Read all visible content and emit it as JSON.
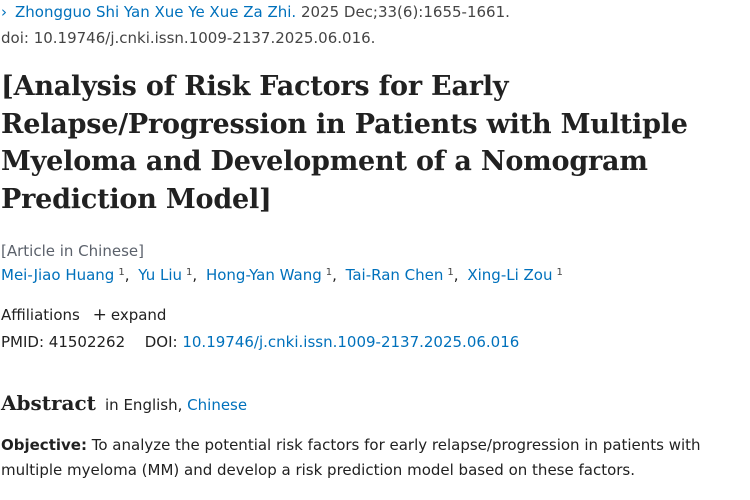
{
  "citation": {
    "journal": "Zhongguo Shi Yan Xue Ye Xue Za Zhi.",
    "date_volume": "2025 Dec;33(6):1655-1661.",
    "doi": "doi: 10.19746/j.cnki.issn.1009-2137.2025.06.016."
  },
  "title_lines": [
    "[Analysis of Risk Factors for Early",
    "Relapse/Progression in Patients with Multiple",
    "Myeloma and Development of a Nomogram",
    "Prediction Model]"
  ],
  "article_lang": "[Article in Chinese]",
  "authors": [
    {
      "name": "Mei-Jiao Huang",
      "sup": "1"
    },
    {
      "name": "Yu Liu",
      "sup": "1"
    },
    {
      "name": "Hong-Yan Wang",
      "sup": "1"
    },
    {
      "name": "Tai-Ran Chen",
      "sup": "1"
    },
    {
      "name": "Xing-Li Zou",
      "sup": "1"
    }
  ],
  "affiliations": {
    "label": "Affiliations",
    "expand": "expand"
  },
  "ids": {
    "pmid_label": "PMID:",
    "pmid": "41502262",
    "doi_label": "DOI:",
    "doi": "10.19746/j.cnki.issn.1009-2137.2025.06.016"
  },
  "abstract": {
    "title": "Abstract",
    "in_label": "in English,",
    "other_lang": "Chinese",
    "objective_label": "Objective:",
    "objective_text": "To analyze the potential risk factors for early relapse/progression in patients with multiple myeloma (MM) and develop a risk prediction model based on these factors."
  },
  "colors": {
    "link": "#0071bc",
    "text": "#212121"
  },
  "icons": {
    "breadcrumb": "chevron-right-icon",
    "expand": "plus-icon"
  }
}
